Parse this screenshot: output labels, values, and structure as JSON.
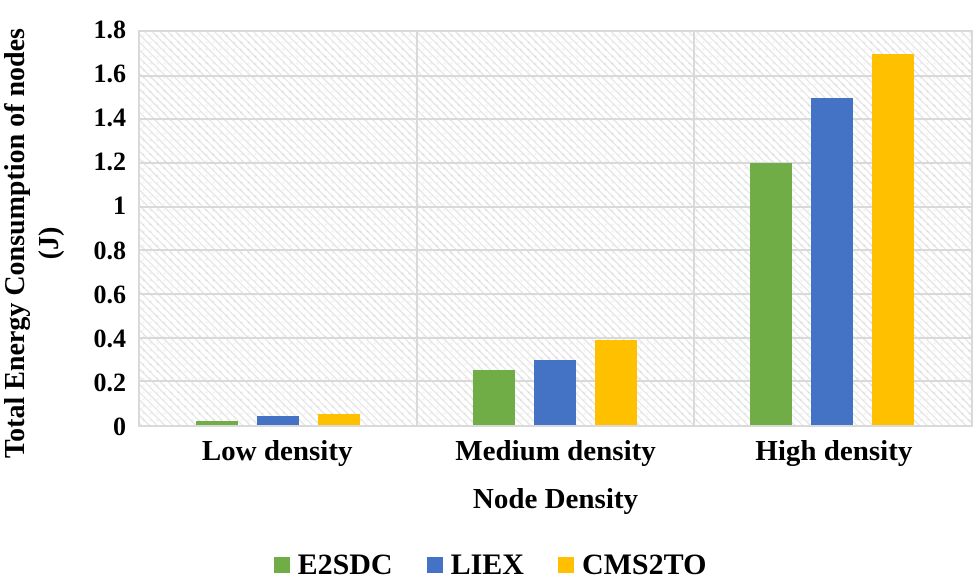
{
  "chart_data": {
    "type": "bar",
    "title": "",
    "xlabel": "Node Density",
    "ylabel": "Total Energy Consumption of nodes (J)",
    "ylabel_lines": [
      "Total Energy Consumption of nodes",
      "(J)"
    ],
    "categories": [
      "Low density",
      "Medium density",
      "High density"
    ],
    "series": [
      {
        "name": "E2SDC",
        "color": "#70AD47",
        "values": [
          0.02,
          0.25,
          1.2
        ]
      },
      {
        "name": "LIEX",
        "color": "#4472C4",
        "values": [
          0.04,
          0.3,
          1.5
        ]
      },
      {
        "name": "CMS2TO",
        "color": "#FFC000",
        "values": [
          0.05,
          0.39,
          1.7
        ]
      }
    ],
    "ylim": [
      0,
      1.8
    ],
    "y_ticks": {
      "values": [
        0,
        0.2,
        0.4,
        0.6,
        0.8,
        1,
        1.2,
        1.4,
        1.6,
        1.8
      ],
      "labels": [
        "0",
        "0.2",
        "0.4",
        "0.6",
        "0.8",
        "1",
        "1.2",
        "1.4",
        "1.6",
        "1.8"
      ]
    },
    "grid": "horizontal gridlines every 0.2 plus vertical category separators",
    "legend_position": "bottom",
    "plot_background": "light diagonal hatch pattern",
    "colors": {
      "gridline": "#D9D9D9",
      "text": "#000000",
      "background": "#FFFFFF"
    }
  }
}
